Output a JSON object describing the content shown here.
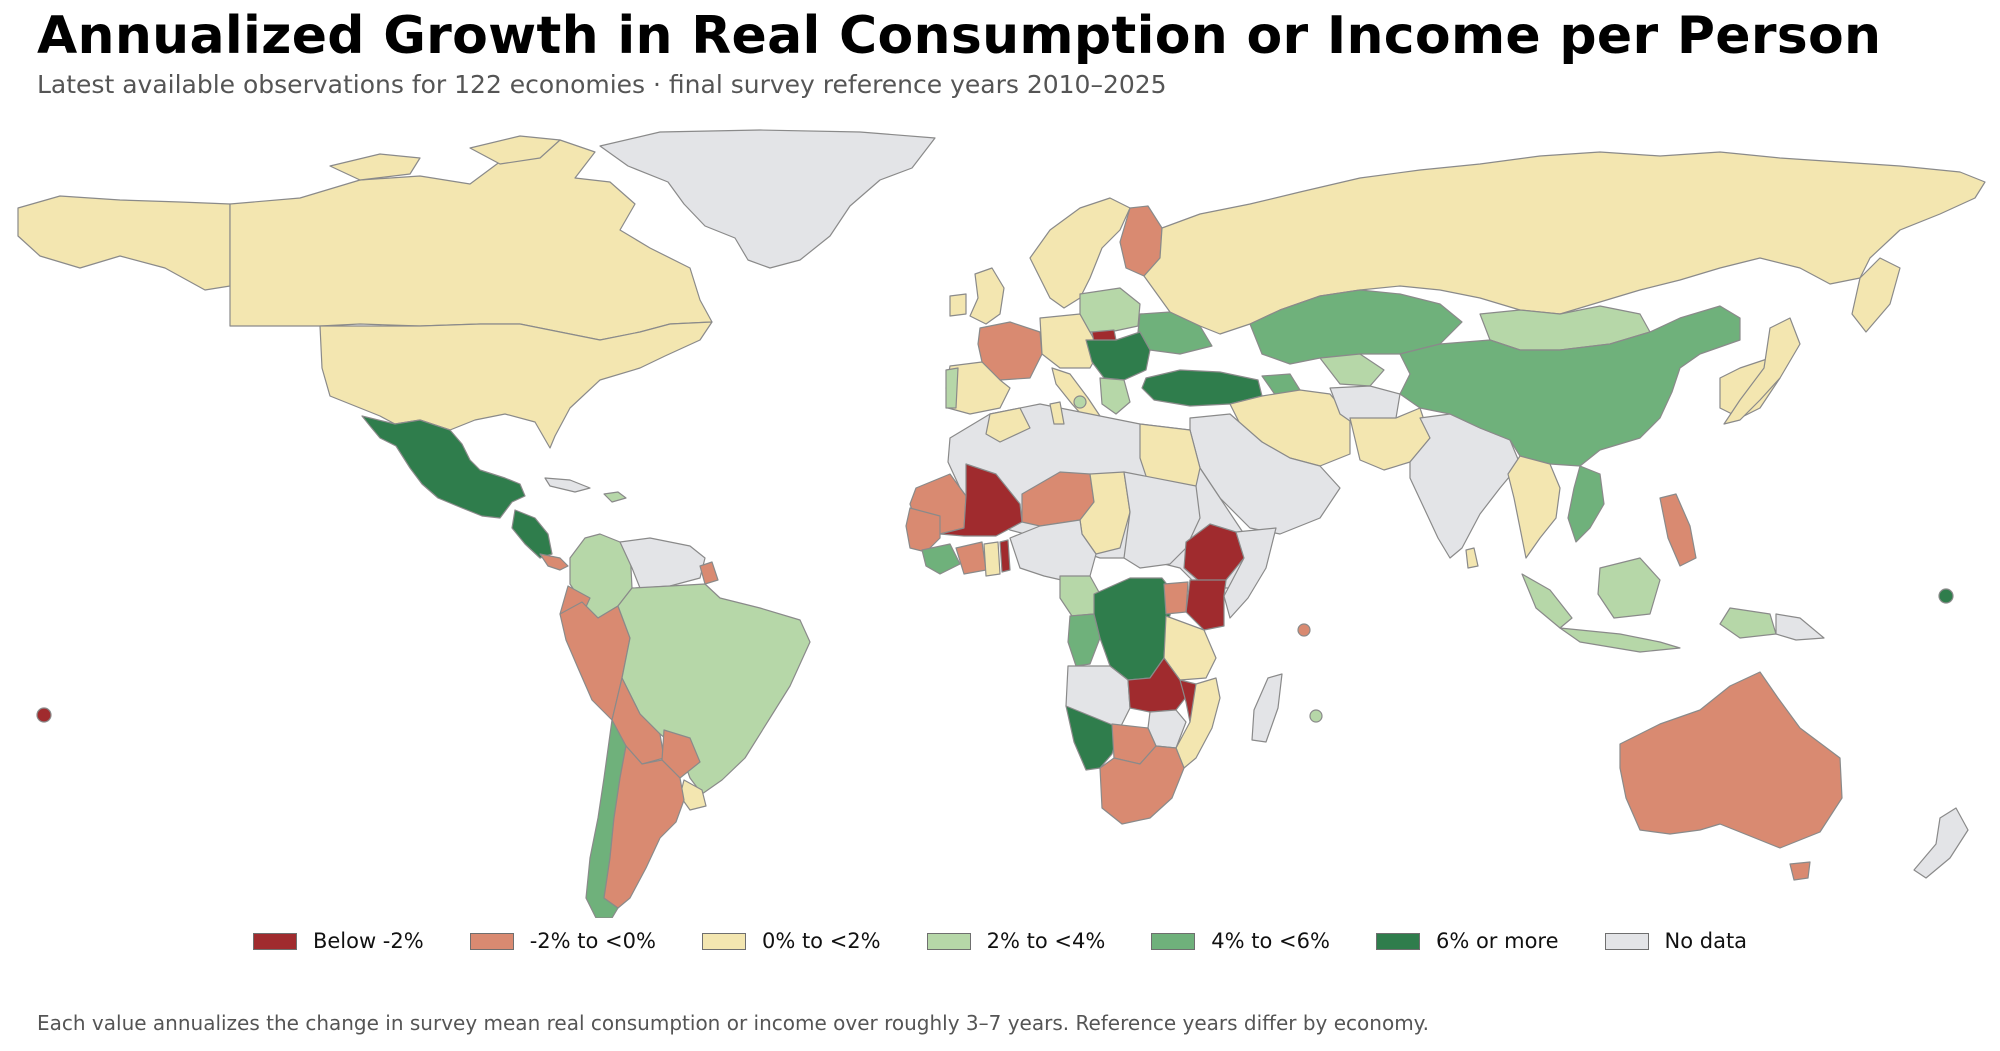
{
  "title": "Annualized Growth in Real Consumption or Income per Person",
  "subtitle": "Latest available observations for 122 economies · final survey reference years 2010–2025",
  "footnote": "Each value annualizes the change in survey mean real consumption or income over roughly 3–7 years. Reference years differ by economy.",
  "colors": {
    "below_m2": "#a02b2e",
    "m2_to_0": "#d98a71",
    "0_to_2": "#f3e6b0",
    "2_to_4": "#b6d7a8",
    "4_to_6": "#6fb17b",
    "6_plus": "#2f7d4c",
    "no_data": "#e3e4e7"
  },
  "legend": [
    {
      "label": "Below -2%",
      "color": "#a02b2e"
    },
    {
      "label": "-2% to <0%",
      "color": "#d98a71"
    },
    {
      "label": "0% to <2%",
      "color": "#f3e6b0"
    },
    {
      "label": "2% to <4%",
      "color": "#b6d7a8"
    },
    {
      "label": "4% to <6%",
      "color": "#6fb17b"
    },
    {
      "label": "6% or more",
      "color": "#2f7d4c"
    },
    {
      "label": "No data",
      "color": "#e3e4e7"
    }
  ]
}
